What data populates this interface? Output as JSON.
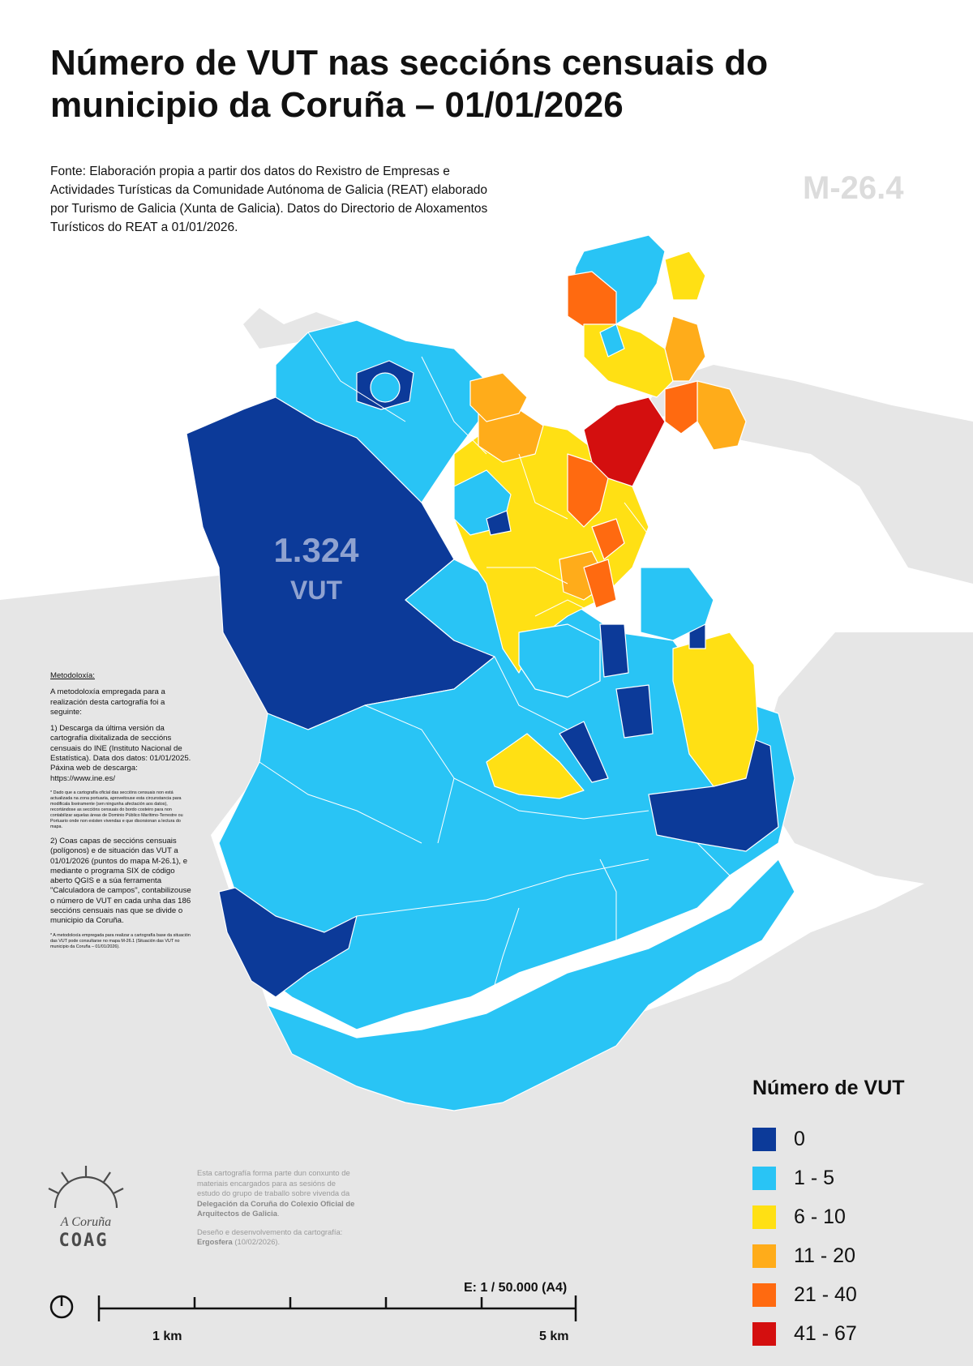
{
  "header": {
    "title": "Número de VUT nas seccións censuais do municipio da Coruña – 01/01/2026",
    "map_code": "M-26.4"
  },
  "source_note": "Fonte: Elaboración propia a partir dos datos do Rexistro de Empresas e Actividades Turísticas da Comunidade Autónoma de Galicia (REAT) elaborado por Turismo de Galicia (Xunta de Galicia). Datos do Directorio de Aloxamentos Turísticos do REAT a 01/01/2026.",
  "map": {
    "highlight_count": "1.324",
    "highlight_unit": "VUT"
  },
  "methodology": {
    "heading": "Metodoloxía:",
    "intro": "A metodoloxía empregada para a realización desta cartografía foi a seguinte:",
    "step1": "1) Descarga da última versión da cartografía dixitalizada de seccións censuais do INE (Instituto Nacional de Estatística). Data dos datos: 01/01/2025. Páxina web de descarga: https://www.ine.es/",
    "note1": "* Dado que a cartografía oficial das seccións censuais non está actualizada na zona portuaria, aproveitouse esta circunstancia para modificala lixeiramente (sen ningunha afectación aos datos), recortándose as seccións censuais do bordo costeiro para non contabilizar aquelas áreas de Dominio Público Marítimo-Terrestre ou Portuario onde non existen vivendas e que disorsionan a lectura do mapa.",
    "step2": "2) Coas capas de seccións censuais (polígonos) e de situación das VUT a 01/01/2026 (puntos do mapa M-26.1), e mediante o programa SIX de código aberto QGIS e a súa ferramenta \"Calculadora de campos\", contabilizouse o número de VUT en cada unha das 186 seccións censuais nas que se divide o municipio da Coruña.",
    "note2": "* A metodoloxía empregada para realizar a cartografía base da situación das VUT pode consultarse no mapa M-26.1 (Situación das VUT no municipio da Coruña – 01/01/2026)."
  },
  "legend": {
    "title": "Número de VUT",
    "items": [
      {
        "label": "0",
        "color": "#0c3a99"
      },
      {
        "label": "1 - 5",
        "color": "#29c4f5"
      },
      {
        "label": "6 - 10",
        "color": "#ffe014"
      },
      {
        "label": "11 - 20",
        "color": "#ffac1a"
      },
      {
        "label": "21 - 40",
        "color": "#ff6a10"
      },
      {
        "label": "41 - 67",
        "color": "#d40f0f"
      }
    ]
  },
  "credits": {
    "p1_pre": "Esta cartografía forma parte dun conxunto de materiais encargados para as sesións de estudo do grupo de traballo sobre vivenda da ",
    "p1_bold": "Delegación da Coruña do Colexio Oficial de Arquitectos de Galicia",
    "p1_post": ".",
    "p2_pre": "Deseño e desenvolvemento da cartografía: ",
    "p2_bold": "Ergosfera",
    "p2_post": " (10/02/2026)."
  },
  "logo": {
    "script_text": "A Coruña",
    "word": "COAG"
  },
  "scale": {
    "text": "E: 1 / 50.000 (A4)",
    "label_1km": "1 km",
    "label_5km": "5 km"
  },
  "colors": {
    "land": "#e6e6e6",
    "zero": "#0c3a99",
    "low": "#29c4f5",
    "mid": "#ffe014",
    "high": "#ffac1a",
    "higher": "#ff6a10",
    "top": "#d40f0f"
  }
}
